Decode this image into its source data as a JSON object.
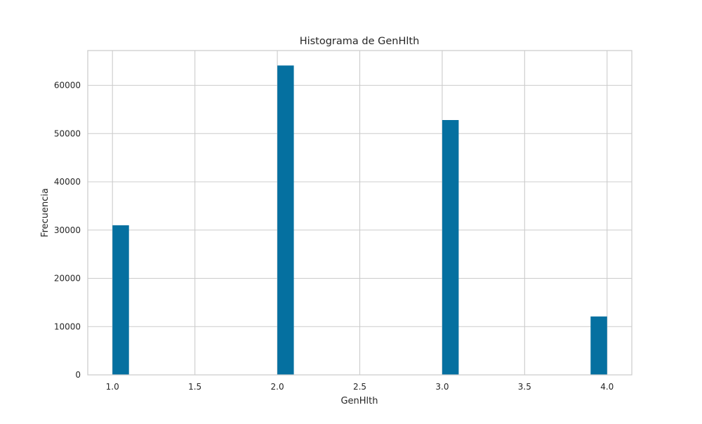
{
  "chart_data": {
    "type": "bar",
    "title": "Histograma de GenHlth",
    "xlabel": "GenHlth",
    "ylabel": "Frecuencia",
    "xlim": [
      0.85,
      4.15
    ],
    "ylim": [
      0,
      67200
    ],
    "x_ticks": [
      1.0,
      1.5,
      2.0,
      2.5,
      3.0,
      3.5,
      4.0
    ],
    "x_tick_labels": [
      "1.0",
      "1.5",
      "2.0",
      "2.5",
      "3.0",
      "3.5",
      "4.0"
    ],
    "y_ticks": [
      0,
      10000,
      20000,
      30000,
      40000,
      50000,
      60000
    ],
    "y_tick_labels": [
      "0",
      "10000",
      "20000",
      "30000",
      "40000",
      "50000",
      "60000"
    ],
    "bin_width": 0.1,
    "bars": [
      {
        "x_start": 1.0,
        "x_end": 1.1,
        "value": 31000
      },
      {
        "x_start": 2.0,
        "x_end": 2.1,
        "value": 64100
      },
      {
        "x_start": 3.0,
        "x_end": 3.1,
        "value": 52800
      },
      {
        "x_start": 3.9,
        "x_end": 4.0,
        "value": 12100
      }
    ],
    "grid": true,
    "colors": {
      "bar": "#0570a0",
      "grid": "#cccccc",
      "frame": "#cccccc",
      "background": "#ffffff",
      "text": "#262626"
    }
  }
}
